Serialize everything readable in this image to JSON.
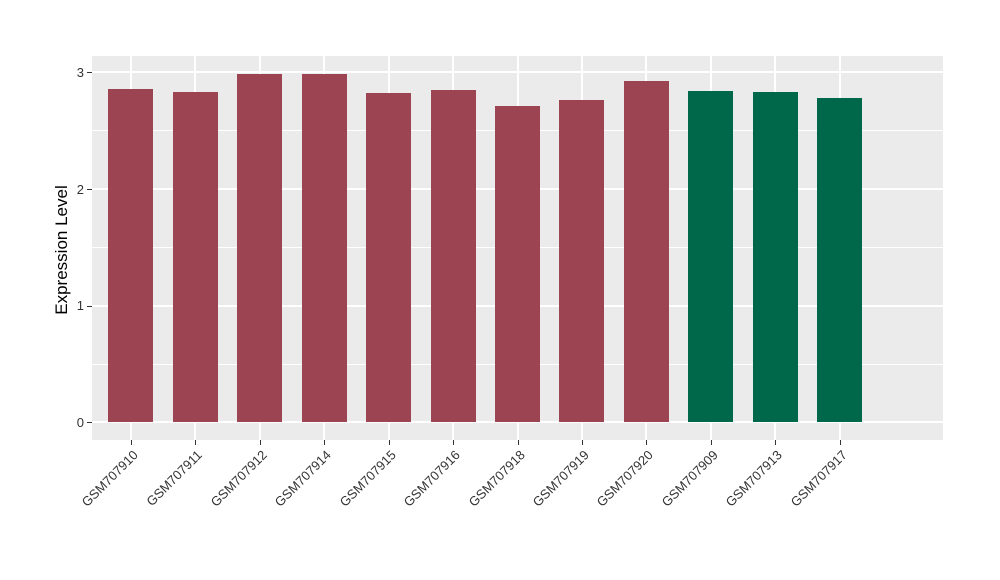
{
  "chart_data": {
    "type": "bar",
    "title": "",
    "xlabel": "",
    "ylabel": "Expression Level",
    "categories": [
      "GSM707910",
      "GSM707911",
      "GSM707912",
      "GSM707914",
      "GSM707915",
      "GSM707916",
      "GSM707918",
      "GSM707919",
      "GSM707920",
      "GSM707909",
      "GSM707913",
      "GSM707917"
    ],
    "values": [
      2.86,
      2.83,
      2.99,
      2.99,
      2.82,
      2.85,
      2.71,
      2.76,
      2.93,
      2.84,
      2.83,
      2.78
    ],
    "bar_colors": [
      "#9D4452",
      "#9D4452",
      "#9D4452",
      "#9D4452",
      "#9D4452",
      "#9D4452",
      "#9D4452",
      "#9D4452",
      "#9D4452",
      "#00684A",
      "#00684A",
      "#00684A"
    ],
    "group_colors": {
      "group1": "#9D4452",
      "group2": "#00684A"
    },
    "yticks": [
      0,
      1,
      2,
      3
    ],
    "ytick_labels": [
      "0",
      "1",
      "2",
      "3"
    ],
    "minor_yticks": [
      0.5,
      1.5,
      2.5
    ],
    "ylim": [
      -0.15,
      3.14
    ],
    "bar_relative_width": 0.7,
    "grid": "on",
    "legend": "none",
    "style": {
      "panel_background": "#EBEBEB",
      "grid_color": "#FFFFFF",
      "tick_text_color": "#333333",
      "axis_title_color": "#000000",
      "figure_background": "#FFFFFF"
    }
  }
}
